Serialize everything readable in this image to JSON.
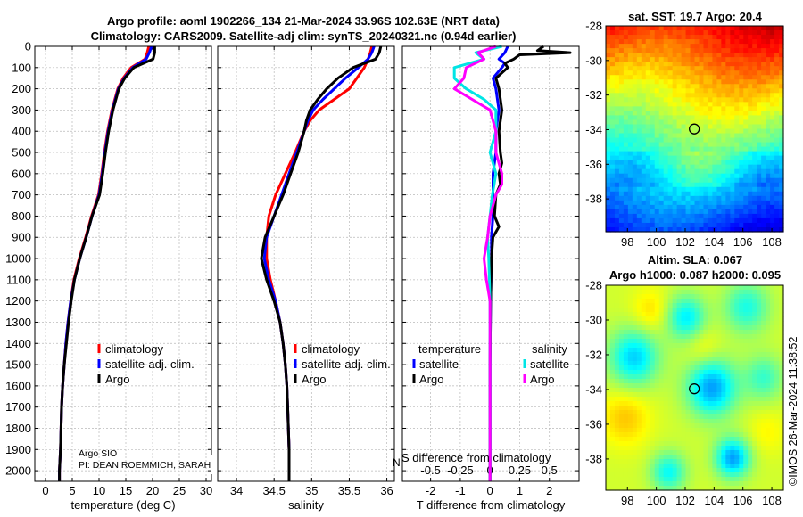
{
  "header": {
    "line1": "Argo profile: aoml 1902266_134 21-Mar-2024 33.96S 102.63E (NRT data)",
    "line2": "Climatology: CARS2009. Satellite-adj clim: synTS_20240321.nc (0.94d earlier)"
  },
  "sst_map": {
    "title": "sat. SST: 19.7 Argo: 20.4",
    "lon_ticks": [
      "98",
      "100",
      "102",
      "104",
      "106",
      "108"
    ],
    "lat_ticks": [
      "-28",
      "-30",
      "-32",
      "-34",
      "-36",
      "-38"
    ],
    "argo_lon": 102.63,
    "argo_lat": -33.96
  },
  "sla_map": {
    "title1": "Altim. SLA: 0.067",
    "title2": "Argo h1000: 0.087 h2000: 0.095",
    "lon_ticks": [
      "98",
      "100",
      "102",
      "104",
      "106",
      "108"
    ],
    "lat_ticks": [
      "-28",
      "-30",
      "-32",
      "-34",
      "-36",
      "-38"
    ],
    "argo_lon": 102.63,
    "argo_lat": -33.96
  },
  "stamp": "©IMOS 26-Mar-2024 11:38:52",
  "credits": {
    "line1": "Argo SIO",
    "line2": "PI: DEAN ROEMMICH, SARAH",
    "overlap_text": "N"
  },
  "colors": {
    "climatology": "#ff0000",
    "satellite": "#0000ff",
    "argo": "#000000",
    "sal_satellite": "#00e5e5",
    "sal_argo": "#ff00ff"
  },
  "chart_data": [
    {
      "type": "line",
      "name": "temperature",
      "xlabel": "temperature (deg C)",
      "ylabel": "",
      "xlim": [
        -2,
        31
      ],
      "ylim": [
        2050,
        0
      ],
      "xticks": [
        "0",
        "5",
        "10",
        "15",
        "20",
        "25",
        "30"
      ],
      "yticks": [
        "0",
        "100",
        "200",
        "300",
        "400",
        "500",
        "600",
        "700",
        "800",
        "900",
        "1000",
        "1100",
        "1200",
        "1300",
        "1400",
        "1500",
        "1600",
        "1700",
        "1800",
        "1900",
        "2000"
      ],
      "legend": [
        "climatology",
        "satellite-adj. clim.",
        "Argo"
      ],
      "series": [
        {
          "name": "climatology",
          "depth": [
            0,
            30,
            60,
            100,
            150,
            200,
            300,
            400,
            500,
            600,
            700,
            800,
            900,
            1000,
            1100,
            1200,
            1300,
            1400,
            1500,
            1600,
            1700,
            1800,
            1900,
            2000,
            2050
          ],
          "values": [
            19.3,
            19.0,
            18.6,
            16.0,
            14.5,
            13.5,
            12.4,
            11.6,
            11.0,
            10.5,
            9.9,
            8.6,
            7.5,
            6.3,
            5.3,
            4.7,
            4.2,
            3.8,
            3.5,
            3.2,
            3.0,
            2.9,
            2.8,
            2.6,
            2.6
          ]
        },
        {
          "name": "satellite-adj. clim.",
          "depth": [
            0,
            30,
            60,
            100,
            150,
            200,
            300,
            400,
            500,
            600,
            700,
            800,
            900,
            1000,
            1100,
            1200,
            1300,
            1400,
            1500,
            1600,
            1700,
            1800,
            1900,
            2000,
            2050
          ],
          "values": [
            19.8,
            19.4,
            18.8,
            16.3,
            14.7,
            13.6,
            12.5,
            11.7,
            11.1,
            10.6,
            10.0,
            8.7,
            7.6,
            6.4,
            5.4,
            4.7,
            4.2,
            3.8,
            3.5,
            3.2,
            3.0,
            2.9,
            2.8,
            2.6,
            2.6
          ]
        },
        {
          "name": "Argo",
          "depth": [
            0,
            30,
            60,
            100,
            150,
            200,
            300,
            400,
            500,
            600,
            700,
            800,
            900,
            1000,
            1100,
            1200,
            1300,
            1400,
            1500,
            1600,
            1700,
            1800,
            1900,
            2000,
            2050
          ],
          "values": [
            20.4,
            20.4,
            20.1,
            16.5,
            14.8,
            13.7,
            12.6,
            11.8,
            11.2,
            10.7,
            10.1,
            8.7,
            7.6,
            6.4,
            5.4,
            4.8,
            4.3,
            3.9,
            3.5,
            3.2,
            3.0,
            2.9,
            2.8,
            2.6,
            2.6
          ]
        }
      ]
    },
    {
      "type": "line",
      "name": "salinity",
      "xlabel": "salinity",
      "ylabel": "",
      "xlim": [
        33.75,
        36.1
      ],
      "ylim": [
        2050,
        0
      ],
      "xticks": [
        "34",
        "34.5",
        "35",
        "35.5",
        "36"
      ],
      "legend": [
        "climatology",
        "satellite-adj. clim.",
        "Argo"
      ],
      "series": [
        {
          "name": "climatology",
          "depth": [
            0,
            30,
            60,
            100,
            150,
            200,
            250,
            300,
            350,
            400,
            500,
            600,
            700,
            800,
            900,
            1000,
            1100,
            1200,
            1300,
            1400,
            1500,
            1600,
            1700,
            1800,
            1900,
            2000,
            2050
          ],
          "values": [
            35.8,
            35.78,
            35.75,
            35.7,
            35.6,
            35.5,
            35.3,
            35.1,
            34.98,
            34.9,
            34.78,
            34.65,
            34.52,
            34.43,
            34.4,
            34.4,
            34.45,
            34.52,
            34.58,
            34.62,
            34.65,
            34.67,
            34.68,
            34.69,
            34.7,
            34.7,
            34.7
          ]
        },
        {
          "name": "satellite-adj. clim.",
          "depth": [
            0,
            30,
            60,
            100,
            150,
            200,
            250,
            300,
            350,
            400,
            500,
            600,
            700,
            800,
            900,
            1000,
            1100,
            1200,
            1300,
            1400,
            1500,
            1600,
            1700,
            1800,
            1900,
            2000,
            2050
          ],
          "values": [
            35.83,
            35.8,
            35.75,
            35.62,
            35.45,
            35.3,
            35.15,
            35.02,
            34.95,
            34.9,
            34.8,
            34.7,
            34.6,
            34.5,
            34.4,
            34.37,
            34.43,
            34.52,
            34.58,
            34.62,
            34.65,
            34.67,
            34.68,
            34.69,
            34.7,
            34.7,
            34.7
          ]
        },
        {
          "name": "Argo",
          "depth": [
            0,
            30,
            60,
            100,
            150,
            200,
            250,
            300,
            350,
            400,
            500,
            600,
            700,
            800,
            900,
            1000,
            1100,
            1200,
            1300,
            1400,
            1500,
            1600,
            1700,
            1800,
            1900,
            2000,
            2050
          ],
          "values": [
            35.92,
            35.9,
            35.85,
            35.55,
            35.35,
            35.2,
            35.08,
            34.98,
            34.93,
            34.9,
            34.82,
            34.72,
            34.62,
            34.5,
            34.38,
            34.33,
            34.4,
            34.5,
            34.58,
            34.62,
            34.65,
            34.67,
            34.68,
            34.69,
            34.7,
            34.7,
            34.7
          ]
        }
      ]
    },
    {
      "type": "line",
      "name": "difference",
      "xlabel": "T difference from climatology",
      "top_xlabel": "S difference from climatology",
      "xlim": [
        -2.95,
        3.0
      ],
      "ylim": [
        2050,
        0
      ],
      "xticks": [
        "-2",
        "-1",
        "0",
        "1",
        "2"
      ],
      "top_xticks": [
        "-0.5",
        "-0.25",
        "0",
        "0.25",
        "0.5"
      ],
      "legend_temperature_title": "temperature",
      "legend_salinity_title": "salinity",
      "legend_entries": [
        "satellite",
        "Argo",
        "satellite",
        "Argo"
      ],
      "series": [
        {
          "name": "temperature satellite",
          "depth": [
            0,
            30,
            60,
            80,
            100,
            150,
            200,
            300,
            400,
            500,
            600,
            700,
            800,
            900,
            1000,
            1200,
            1500,
            1800,
            2050
          ],
          "values": [
            0.6,
            0.5,
            0.3,
            0.5,
            0.4,
            0.1,
            0.2,
            0.3,
            0.2,
            0.2,
            0.1,
            0.1,
            0.1,
            0.05,
            0.05,
            0.02,
            0.0,
            0.0,
            0.0
          ]
        },
        {
          "name": "temperature Argo",
          "depth": [
            0,
            20,
            30,
            40,
            60,
            80,
            100,
            150,
            200,
            300,
            400,
            500,
            550,
            600,
            650,
            700,
            800,
            850,
            900,
            1000,
            1200,
            1500,
            1800,
            2050
          ],
          "values": [
            1.8,
            1.6,
            2.7,
            1.0,
            0.8,
            0.5,
            0.6,
            0.2,
            0.3,
            0.4,
            0.3,
            0.35,
            0.4,
            0.3,
            0.35,
            0.2,
            0.15,
            0.3,
            0.1,
            0.05,
            0.02,
            0.0,
            0.0,
            0.0
          ]
        },
        {
          "name": "salinity satellite",
          "depth": [
            0,
            30,
            60,
            100,
            150,
            200,
            250,
            300,
            400,
            500,
            600,
            700,
            800,
            900,
            1000,
            1200,
            1500,
            1800,
            2050
          ],
          "values": [
            0.1,
            -0.12,
            -0.05,
            -0.3,
            -0.3,
            -0.2,
            -0.05,
            0.05,
            0.05,
            0.0,
            0.05,
            0.02,
            0.0,
            -0.02,
            -0.01,
            0.0,
            0.0,
            0.0,
            0.0
          ]
        },
        {
          "name": "salinity Argo",
          "depth": [
            0,
            30,
            60,
            100,
            150,
            200,
            250,
            300,
            400,
            500,
            600,
            650,
            700,
            800,
            900,
            1000,
            1100,
            1200,
            1500,
            1800,
            2050
          ],
          "values": [
            0.05,
            -0.1,
            -0.05,
            -0.2,
            -0.22,
            -0.3,
            -0.15,
            0.0,
            0.05,
            0.05,
            0.1,
            0.1,
            0.05,
            0.0,
            -0.02,
            -0.05,
            -0.03,
            0.0,
            0.0,
            0.0,
            0.0
          ]
        }
      ]
    }
  ]
}
